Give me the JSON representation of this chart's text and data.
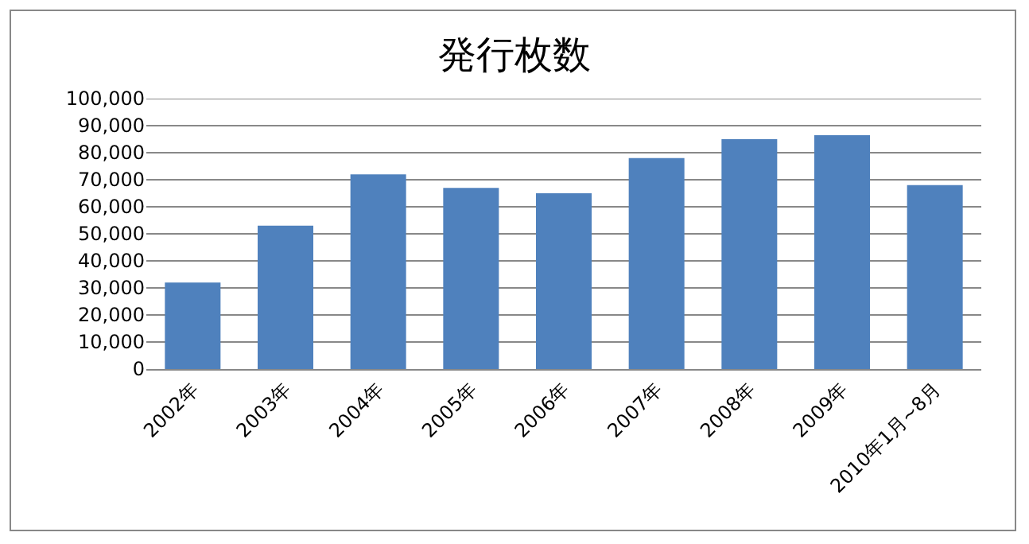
{
  "chart_data": {
    "type": "bar",
    "title": "発行枚数",
    "categories": [
      "2002年",
      "2003年",
      "2004年",
      "2005年",
      "2006年",
      "2007年",
      "2008年",
      "2009年",
      "2010年1月~8月"
    ],
    "values": [
      32000,
      53000,
      72000,
      67000,
      65000,
      78000,
      85000,
      86500,
      68000
    ],
    "color": "#4f81bd",
    "ylim": [
      0,
      100000
    ],
    "yticks": [
      {
        "value": 0,
        "label": "0"
      },
      {
        "value": 10000,
        "label": "10,000"
      },
      {
        "value": 20000,
        "label": "20,000"
      },
      {
        "value": 30000,
        "label": "30,000"
      },
      {
        "value": 40000,
        "label": "40,000"
      },
      {
        "value": 50000,
        "label": "50,000"
      },
      {
        "value": 60000,
        "label": "60,000"
      },
      {
        "value": 70000,
        "label": "70,000"
      },
      {
        "value": 80000,
        "label": "80,000"
      },
      {
        "value": 90000,
        "label": "90,000"
      },
      {
        "value": 100000,
        "label": "100,000"
      }
    ],
    "grid": "y"
  }
}
